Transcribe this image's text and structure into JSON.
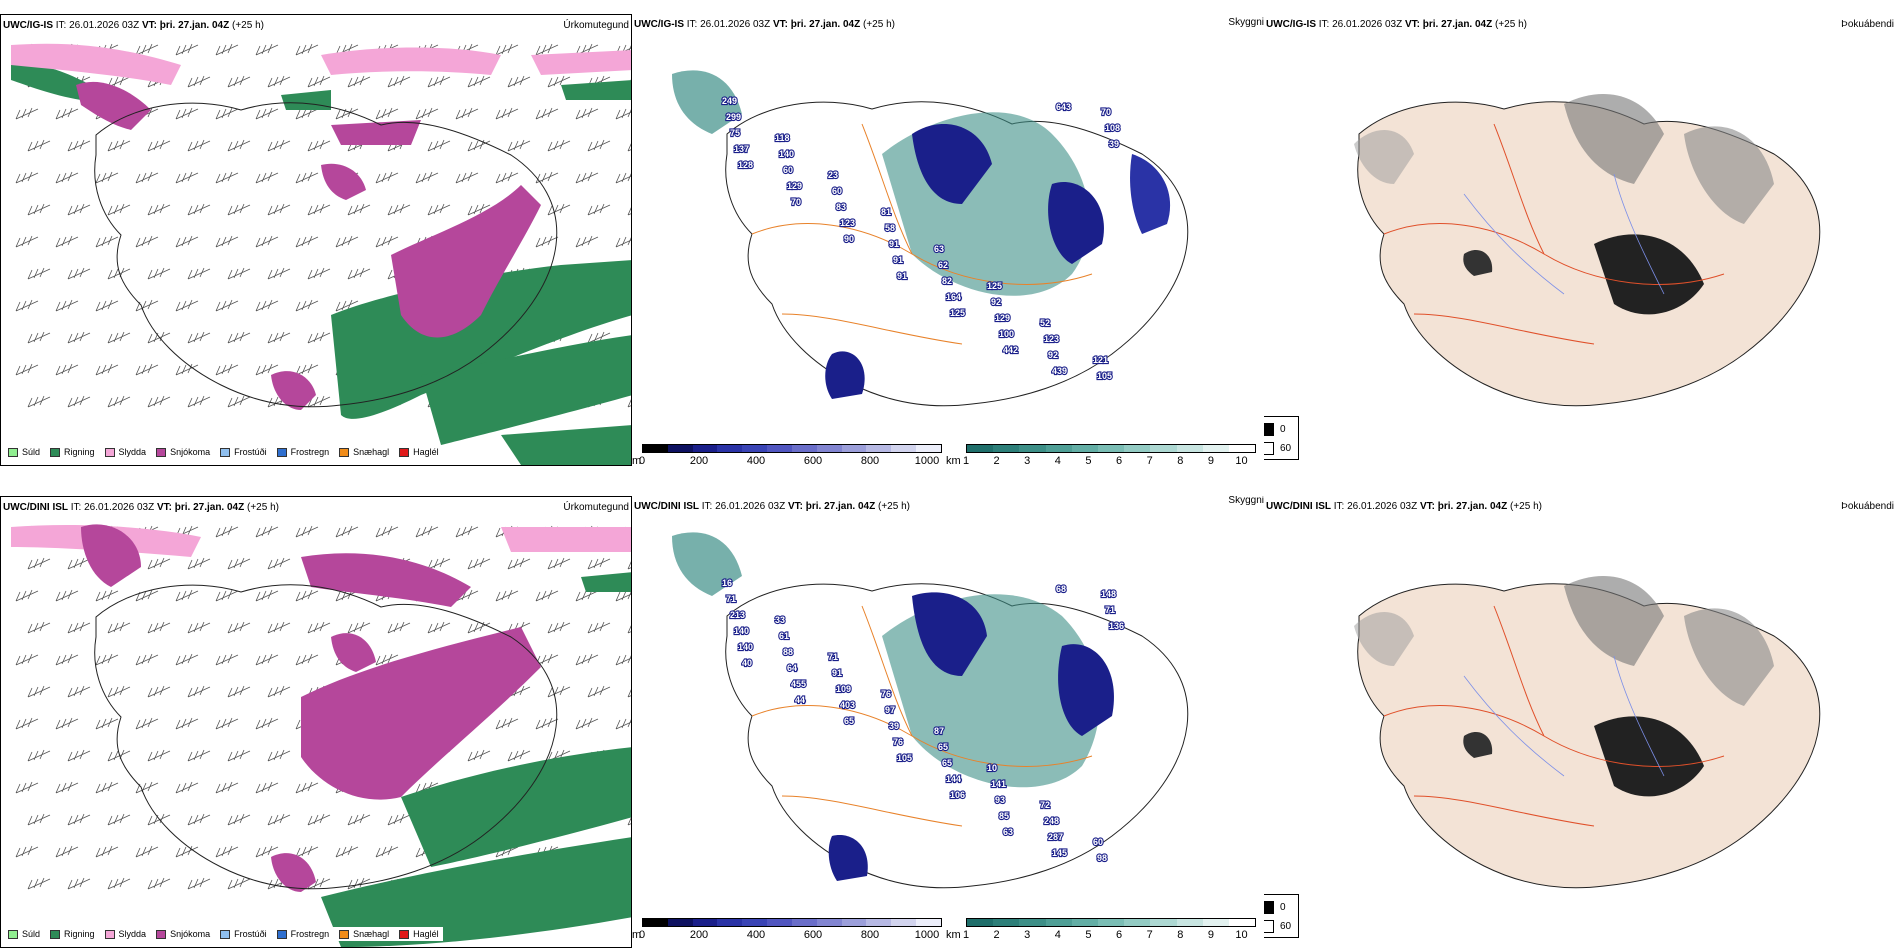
{
  "rows": [
    {
      "model": "UWC/IG-IS",
      "it_label": "IT:",
      "it_value": "26.01.2026 03Z",
      "vt_label": "VT:",
      "vt_value": "þri. 27.jan. 04Z",
      "lead": "(+25 h)"
    },
    {
      "model": "UWC/DINI ISL",
      "it_label": "IT:",
      "it_value": "26.01.2026 03Z",
      "vt_label": "VT:",
      "vt_value": "þri. 27.jan. 04Z",
      "lead": "(+25 h)"
    }
  ],
  "panel_titles": {
    "precip": "Úrkomutegund",
    "visibility": "Skyggni",
    "fog": "Þokuábendi"
  },
  "precip_legend": [
    {
      "label": "Súld",
      "color": "#90ee90"
    },
    {
      "label": "Rigning",
      "color": "#2e8b57"
    },
    {
      "label": "Slydda",
      "color": "#f4a6d7"
    },
    {
      "label": "Snjókoma",
      "color": "#b5479b"
    },
    {
      "label": "Frostúði",
      "color": "#8fbfef"
    },
    {
      "label": "Frostregn",
      "color": "#2f6fcf"
    },
    {
      "label": "Snæhagl",
      "color": "#f08c1a"
    },
    {
      "label": "Haglél",
      "color": "#e01a1a"
    }
  ],
  "cbar_ceiling": {
    "unit": "m",
    "ticks": [
      "0",
      "200",
      "400",
      "600",
      "800",
      "1000"
    ],
    "colors": [
      "#000000",
      "#0d1160",
      "#1a1f8a",
      "#2a33a6",
      "#3a44b5",
      "#5156c0",
      "#6a6ec9",
      "#8285d1",
      "#9c9fda",
      "#b7b9e4",
      "#d2d4ee",
      "#eceefa"
    ]
  },
  "cbar_visibility": {
    "unit": "km",
    "ticks": [
      "1",
      "2",
      "3",
      "4",
      "5",
      "6",
      "7",
      "8",
      "9",
      "10"
    ],
    "colors": [
      "#1f6f6b",
      "#2d7f79",
      "#3d8f87",
      "#4f9f96",
      "#63aea5",
      "#7abdb4",
      "#93cbc3",
      "#add8d2",
      "#c8e5e1",
      "#e3f2f0",
      "#ffffff"
    ]
  },
  "fog_legend": [
    {
      "value": "0",
      "color": "#000000"
    },
    {
      "value": "60",
      "color": "#ffffff"
    }
  ],
  "visibility_labels_top": [
    "249",
    "118",
    "23",
    "81",
    "63",
    "125",
    "52",
    "121",
    "299",
    "140",
    "60",
    "58",
    "62",
    "92",
    "123",
    "105",
    "75",
    "60",
    "83",
    "91",
    "82",
    "129",
    "92",
    "70",
    "137",
    "129",
    "123",
    "91",
    "164",
    "100",
    "439",
    "108",
    "128",
    "70",
    "90",
    "91",
    "125",
    "442",
    "643",
    "39"
  ],
  "visibility_labels_bottom": [
    "16",
    "33",
    "71",
    "76",
    "87",
    "10",
    "72",
    "60",
    "71",
    "61",
    "91",
    "97",
    "65",
    "141",
    "248",
    "98",
    "213",
    "88",
    "109",
    "39",
    "65",
    "93",
    "287",
    "148",
    "140",
    "64",
    "403",
    "76",
    "144",
    "85",
    "145",
    "71",
    "140",
    "455",
    "65",
    "105",
    "106",
    "63",
    "68",
    "136",
    "40",
    "44"
  ],
  "colors": {
    "land_fill": "#f3e3d6",
    "road": "#e8822a",
    "river": "#7c8fe8",
    "coast": "#000000",
    "snow": "#b5479b",
    "rain": "#2e8b57",
    "sleet": "#f4a6d7"
  }
}
